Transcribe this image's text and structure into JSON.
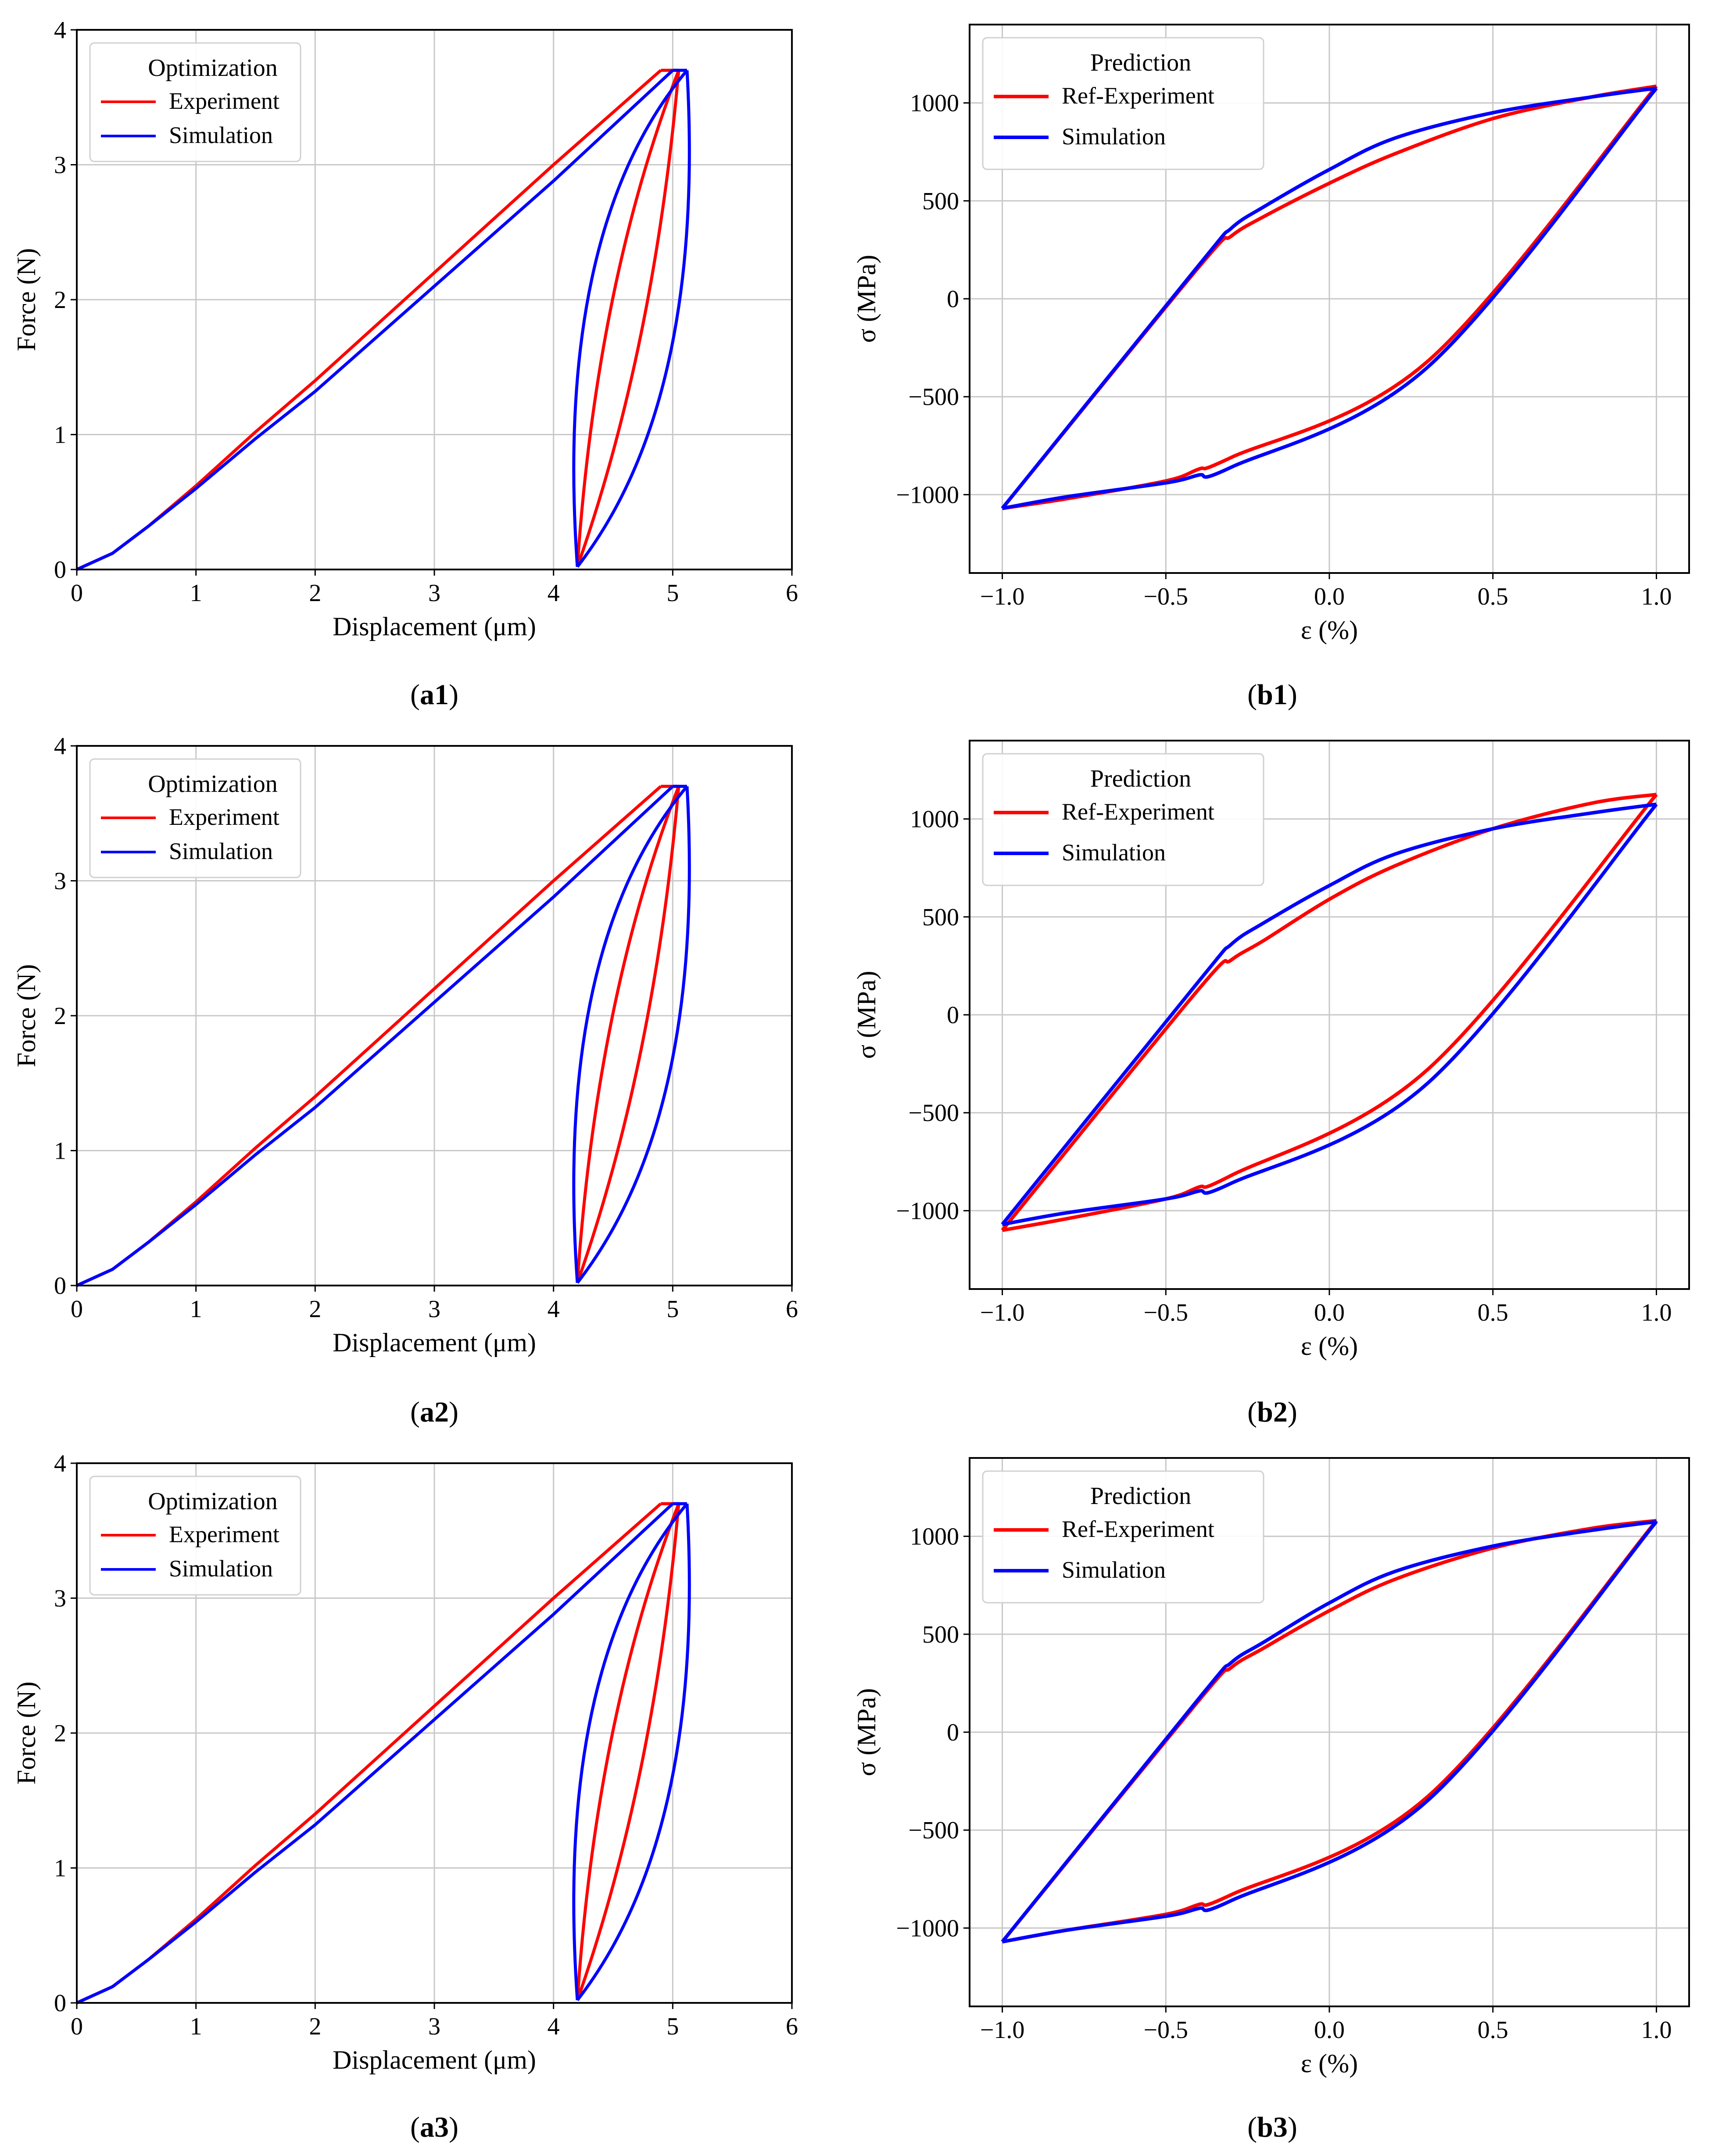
{
  "colors": {
    "experiment": "#ff0000",
    "simulation": "#0000ff",
    "grid": "#c8c8c8",
    "frame": "#000000"
  },
  "chart_data": [
    {
      "id": "a1",
      "caption": {
        "open": "(",
        "bold": "a1",
        "close": ")"
      },
      "type": "line",
      "xlabel": "Displacement (μm)",
      "ylabel": "Force  (N)",
      "xlim": [
        0,
        6
      ],
      "ylim": [
        0,
        4
      ],
      "xticks": [
        0,
        1,
        2,
        3,
        4,
        5,
        6
      ],
      "xtick_labels": [
        "0",
        "1",
        "2",
        "3",
        "4",
        "5",
        "6"
      ],
      "yticks": [
        0,
        1,
        2,
        3,
        4
      ],
      "ytick_labels": [
        "0",
        "1",
        "2",
        "3",
        "4"
      ],
      "grid": true,
      "legend_position": "top-left",
      "legend_title": "Optimization",
      "series": [
        {
          "name": "Experiment",
          "color": "#ff0000",
          "loading": [
            [
              0,
              0
            ],
            [
              0.3,
              0.12
            ],
            [
              0.6,
              0.32
            ],
            [
              1.0,
              0.62
            ],
            [
              1.5,
              1.02
            ],
            [
              2.0,
              1.4
            ],
            [
              3.0,
              2.2
            ],
            [
              4.0,
              3.0
            ],
            [
              4.9,
              3.7
            ]
          ],
          "hold": [
            [
              4.9,
              3.7
            ],
            [
              5.05,
              3.7
            ]
          ],
          "unloading": [
            [
              [
                5.05,
                3.7
              ],
              [
                4.2,
                0.02
              ]
            ],
            [
              [
                5.05,
                3.7
              ],
              [
                4.2,
                0.02
              ]
            ]
          ],
          "unloading_bulge": [
            0.1,
            -0.12
          ]
        },
        {
          "name": "Simulation",
          "color": "#0000ff",
          "loading": [
            [
              0,
              0
            ],
            [
              0.3,
              0.12
            ],
            [
              0.6,
              0.32
            ],
            [
              1.0,
              0.6
            ],
            [
              1.5,
              0.97
            ],
            [
              2.0,
              1.32
            ],
            [
              3.0,
              2.1
            ],
            [
              4.0,
              2.88
            ],
            [
              5.0,
              3.7
            ]
          ],
          "hold": [
            [
              5.0,
              3.7
            ],
            [
              5.12,
              3.7
            ]
          ],
          "unloading": [
            [
              [
                5.12,
                3.7
              ],
              [
                4.2,
                0.02
              ]
            ],
            [
              [
                5.12,
                3.7
              ],
              [
                4.2,
                0.02
              ]
            ]
          ],
          "unloading_bulge": [
            0.28,
            -0.3
          ]
        }
      ]
    },
    {
      "id": "b1",
      "caption": {
        "open": "(",
        "bold": "b1",
        "close": ")"
      },
      "type": "line",
      "xlabel": "ε (%)",
      "ylabel": "σ (MPa)",
      "xlim": [
        -1.1,
        1.1
      ],
      "ylim": [
        -1400,
        1400
      ],
      "xticks": [
        -1.0,
        -0.5,
        0.0,
        0.5,
        1.0
      ],
      "xtick_labels": [
        "−1.0",
        "−0.5",
        "0.0",
        "0.5",
        "1.0"
      ],
      "yticks": [
        -1000,
        -500,
        0,
        500,
        1000
      ],
      "ytick_labels": [
        "−1000",
        "−500",
        "0",
        "500",
        "1000"
      ],
      "grid": true,
      "legend_position": "top-left",
      "legend_title": "Prediction",
      "series": [
        {
          "name": "Ref-Experiment",
          "color": "#ff0000",
          "x": [
            -1.0,
            -0.4,
            -0.3,
            -0.2,
            0.0,
            0.2,
            0.5,
            0.8,
            1.0,
            0.3,
            -0.3,
            -0.4,
            -0.5,
            -0.8,
            -1.0
          ],
          "y": [
            -1070,
            160,
            320,
            420,
            590,
            740,
            920,
            1030,
            1085,
            -320,
            -810,
            -870,
            -930,
            -1020,
            -1070
          ]
        },
        {
          "name": "Simulation",
          "color": "#0000ff",
          "x": [
            -1.0,
            -0.4,
            -0.3,
            -0.2,
            0.0,
            0.2,
            0.5,
            0.8,
            1.0,
            0.3,
            -0.3,
            -0.4,
            -0.5,
            -0.8,
            -1.0
          ],
          "y": [
            -1070,
            170,
            360,
            470,
            660,
            820,
            950,
            1030,
            1075,
            -350,
            -860,
            -900,
            -940,
            -1010,
            -1070
          ]
        }
      ]
    },
    {
      "id": "a2",
      "caption": {
        "open": "(",
        "bold": "a2",
        "close": ")"
      },
      "type": "line",
      "xlabel": "Displacement (μm)",
      "ylabel": "Force  (N)",
      "xlim": [
        0,
        6
      ],
      "ylim": [
        0,
        4
      ],
      "xticks": [
        0,
        1,
        2,
        3,
        4,
        5,
        6
      ],
      "xtick_labels": [
        "0",
        "1",
        "2",
        "3",
        "4",
        "5",
        "6"
      ],
      "yticks": [
        0,
        1,
        2,
        3,
        4
      ],
      "ytick_labels": [
        "0",
        "1",
        "2",
        "3",
        "4"
      ],
      "grid": true,
      "legend_position": "top-left",
      "legend_title": "Optimization",
      "series": [
        {
          "name": "Experiment",
          "color": "#ff0000",
          "loading": [
            [
              0,
              0
            ],
            [
              0.3,
              0.12
            ],
            [
              0.6,
              0.32
            ],
            [
              1.0,
              0.62
            ],
            [
              1.5,
              1.02
            ],
            [
              2.0,
              1.4
            ],
            [
              3.0,
              2.2
            ],
            [
              4.0,
              3.0
            ],
            [
              4.9,
              3.7
            ]
          ],
          "hold": [
            [
              4.9,
              3.7
            ],
            [
              5.05,
              3.7
            ]
          ],
          "unloading": [
            [
              [
                5.05,
                3.7
              ],
              [
                4.2,
                0.02
              ]
            ],
            [
              [
                5.05,
                3.7
              ],
              [
                4.2,
                0.02
              ]
            ]
          ],
          "unloading_bulge": [
            0.1,
            -0.12
          ]
        },
        {
          "name": "Simulation",
          "color": "#0000ff",
          "loading": [
            [
              0,
              0
            ],
            [
              0.3,
              0.12
            ],
            [
              0.6,
              0.32
            ],
            [
              1.0,
              0.6
            ],
            [
              1.5,
              0.97
            ],
            [
              2.0,
              1.32
            ],
            [
              3.0,
              2.1
            ],
            [
              4.0,
              2.88
            ],
            [
              5.0,
              3.7
            ]
          ],
          "hold": [
            [
              5.0,
              3.7
            ],
            [
              5.12,
              3.7
            ]
          ],
          "unloading": [
            [
              [
                5.12,
                3.7
              ],
              [
                4.2,
                0.02
              ]
            ],
            [
              [
                5.12,
                3.7
              ],
              [
                4.2,
                0.02
              ]
            ]
          ],
          "unloading_bulge": [
            0.28,
            -0.3
          ]
        }
      ]
    },
    {
      "id": "b2",
      "caption": {
        "open": "(",
        "bold": "b2",
        "close": ")"
      },
      "type": "line",
      "xlabel": "ε (%)",
      "ylabel": "σ (MPa)",
      "xlim": [
        -1.1,
        1.1
      ],
      "ylim": [
        -1400,
        1400
      ],
      "xticks": [
        -1.0,
        -0.5,
        0.0,
        0.5,
        1.0
      ],
      "xtick_labels": [
        "−1.0",
        "−0.5",
        "0.0",
        "0.5",
        "1.0"
      ],
      "yticks": [
        -1000,
        -500,
        0,
        500,
        1000
      ],
      "ytick_labels": [
        "−1000",
        "−500",
        "0",
        "500",
        "1000"
      ],
      "grid": true,
      "legend_position": "top-left",
      "legend_title": "Prediction",
      "series": [
        {
          "name": "Ref-Experiment",
          "color": "#ff0000",
          "x": [
            -1.0,
            -0.4,
            -0.3,
            -0.2,
            0.0,
            0.2,
            0.5,
            0.8,
            1.0,
            0.3,
            -0.3,
            -0.4,
            -0.5,
            -0.8,
            -1.0
          ],
          "y": [
            -1100,
            130,
            280,
            380,
            590,
            760,
            950,
            1080,
            1125,
            -280,
            -820,
            -880,
            -940,
            -1040,
            -1100
          ]
        },
        {
          "name": "Simulation",
          "color": "#0000ff",
          "x": [
            -1.0,
            -0.4,
            -0.3,
            -0.2,
            0.0,
            0.2,
            0.5,
            0.8,
            1.0,
            0.3,
            -0.3,
            -0.4,
            -0.5,
            -0.8,
            -1.0
          ],
          "y": [
            -1070,
            170,
            360,
            470,
            660,
            820,
            950,
            1030,
            1075,
            -350,
            -860,
            -900,
            -940,
            -1010,
            -1070
          ]
        }
      ]
    },
    {
      "id": "a3",
      "caption": {
        "open": "(",
        "bold": "a3",
        "close": ")"
      },
      "type": "line",
      "xlabel": "Displacement (μm)",
      "ylabel": "Force  (N)",
      "xlim": [
        0,
        6
      ],
      "ylim": [
        0,
        4
      ],
      "xticks": [
        0,
        1,
        2,
        3,
        4,
        5,
        6
      ],
      "xtick_labels": [
        "0",
        "1",
        "2",
        "3",
        "4",
        "5",
        "6"
      ],
      "yticks": [
        0,
        1,
        2,
        3,
        4
      ],
      "ytick_labels": [
        "0",
        "1",
        "2",
        "3",
        "4"
      ],
      "grid": true,
      "legend_position": "top-left",
      "legend_title": "Optimization",
      "series": [
        {
          "name": "Experiment",
          "color": "#ff0000",
          "loading": [
            [
              0,
              0
            ],
            [
              0.3,
              0.12
            ],
            [
              0.6,
              0.32
            ],
            [
              1.0,
              0.62
            ],
            [
              1.5,
              1.02
            ],
            [
              2.0,
              1.4
            ],
            [
              3.0,
              2.2
            ],
            [
              4.0,
              3.0
            ],
            [
              4.9,
              3.7
            ]
          ],
          "hold": [
            [
              4.9,
              3.7
            ],
            [
              5.05,
              3.7
            ]
          ],
          "unloading": [
            [
              [
                5.05,
                3.7
              ],
              [
                4.2,
                0.02
              ]
            ],
            [
              [
                5.05,
                3.7
              ],
              [
                4.2,
                0.02
              ]
            ]
          ],
          "unloading_bulge": [
            0.1,
            -0.12
          ]
        },
        {
          "name": "Simulation",
          "color": "#0000ff",
          "loading": [
            [
              0,
              0
            ],
            [
              0.3,
              0.12
            ],
            [
              0.6,
              0.32
            ],
            [
              1.0,
              0.6
            ],
            [
              1.5,
              0.97
            ],
            [
              2.0,
              1.32
            ],
            [
              3.0,
              2.1
            ],
            [
              4.0,
              2.88
            ],
            [
              5.0,
              3.7
            ]
          ],
          "hold": [
            [
              5.0,
              3.7
            ],
            [
              5.12,
              3.7
            ]
          ],
          "unloading": [
            [
              [
                5.12,
                3.7
              ],
              [
                4.2,
                0.02
              ]
            ],
            [
              [
                5.12,
                3.7
              ],
              [
                4.2,
                0.02
              ]
            ]
          ],
          "unloading_bulge": [
            0.28,
            -0.3
          ]
        }
      ]
    },
    {
      "id": "b3",
      "caption": {
        "open": "(",
        "bold": "b3",
        "close": ")"
      },
      "type": "line",
      "xlabel": "ε (%)",
      "ylabel": "σ (MPa)",
      "xlim": [
        -1.1,
        1.1
      ],
      "ylim": [
        -1400,
        1400
      ],
      "xticks": [
        -1.0,
        -0.5,
        0.0,
        0.5,
        1.0
      ],
      "xtick_labels": [
        "−1.0",
        "−0.5",
        "0.0",
        "0.5",
        "1.0"
      ],
      "yticks": [
        -1000,
        -500,
        0,
        500,
        1000
      ],
      "ytick_labels": [
        "−1000",
        "−500",
        "0",
        "500",
        "1000"
      ],
      "grid": true,
      "legend_position": "top-left",
      "legend_title": "Prediction",
      "series": [
        {
          "name": "Ref-Experiment",
          "color": "#ff0000",
          "x": [
            -1.0,
            -0.4,
            -0.3,
            -0.2,
            0.0,
            0.2,
            0.5,
            0.8,
            1.0,
            0.3,
            -0.3,
            -0.4,
            -0.5,
            -0.8,
            -1.0
          ],
          "y": [
            -1070,
            160,
            330,
            430,
            620,
            780,
            940,
            1040,
            1080,
            -330,
            -830,
            -880,
            -930,
            -1010,
            -1070
          ]
        },
        {
          "name": "Simulation",
          "color": "#0000ff",
          "x": [
            -1.0,
            -0.4,
            -0.3,
            -0.2,
            0.0,
            0.2,
            0.5,
            0.8,
            1.0,
            0.3,
            -0.3,
            -0.4,
            -0.5,
            -0.8,
            -1.0
          ],
          "y": [
            -1070,
            170,
            355,
            460,
            660,
            820,
            950,
            1030,
            1075,
            -350,
            -860,
            -900,
            -940,
            -1010,
            -1070
          ]
        }
      ]
    }
  ]
}
